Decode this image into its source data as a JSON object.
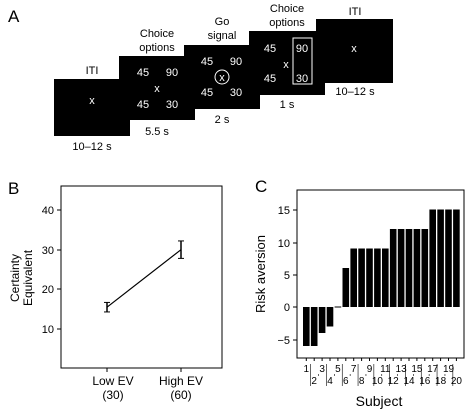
{
  "panelA": {
    "letter": "A",
    "screens": [
      {
        "title": "ITI",
        "center": "x",
        "duration": "10–12 s"
      },
      {
        "title_line1": "Choice",
        "title_line2": "options",
        "tl": "45",
        "tr": "90",
        "center": "x",
        "bl": "45",
        "br": "30",
        "duration": "5.5 s"
      },
      {
        "title_line1": "Go",
        "title_line2": "signal",
        "tl": "45",
        "tr": "90",
        "center": "x",
        "bl": "45",
        "br": "30",
        "duration": "2 s"
      },
      {
        "title_line1": "Choice",
        "title_line2": "options",
        "tl": "45",
        "tr": "90",
        "center": "x",
        "bl": "45",
        "br": "30",
        "duration": "1 s"
      },
      {
        "title": "ITI",
        "center": "x",
        "duration": "10–12 s"
      }
    ]
  },
  "panelB": {
    "letter": "B",
    "ylabel_line1": "Certainty",
    "ylabel_line2": "Equivalent",
    "yticks": [
      "10",
      "20",
      "30",
      "40"
    ],
    "xtick1_line1": "Low EV",
    "xtick1_line2": "(30)",
    "xtick2_line1": "High EV",
    "xtick2_line2": "(60)"
  },
  "panelC": {
    "letter": "C",
    "ylabel": "Risk aversion",
    "xlabel": "Subject",
    "yticks": [
      "−5",
      "0",
      "5",
      "10",
      "15"
    ],
    "odd_subjects": [
      "1",
      "3",
      "5",
      "7",
      "9",
      "11",
      "13",
      "15",
      "17",
      "19"
    ],
    "even_subjects": [
      "2",
      "4",
      "6",
      "8",
      "10",
      "12",
      "14",
      "16",
      "18",
      "20"
    ]
  },
  "chart_data": [
    {
      "type": "line",
      "x": [
        "Low EV (30)",
        "High EV (60)"
      ],
      "y": [
        15.5,
        30
      ],
      "error": [
        1.2,
        2.2
      ],
      "ylim": [
        5,
        45
      ],
      "ylabel": "Certainty Equivalent"
    },
    {
      "type": "bar",
      "categories": [
        "1",
        "2",
        "3",
        "4",
        "5",
        "6",
        "7",
        "8",
        "9",
        "10",
        "11",
        "12",
        "13",
        "14",
        "15",
        "16",
        "17",
        "18",
        "19",
        "20"
      ],
      "values": [
        -6,
        -6,
        -4,
        -3,
        0,
        6,
        9,
        9,
        9,
        9,
        9,
        12,
        12,
        12,
        12,
        12,
        15,
        15,
        15,
        15
      ],
      "ylim": [
        -8,
        17
      ],
      "ylabel": "Risk aversion",
      "xlabel": "Subject"
    }
  ]
}
